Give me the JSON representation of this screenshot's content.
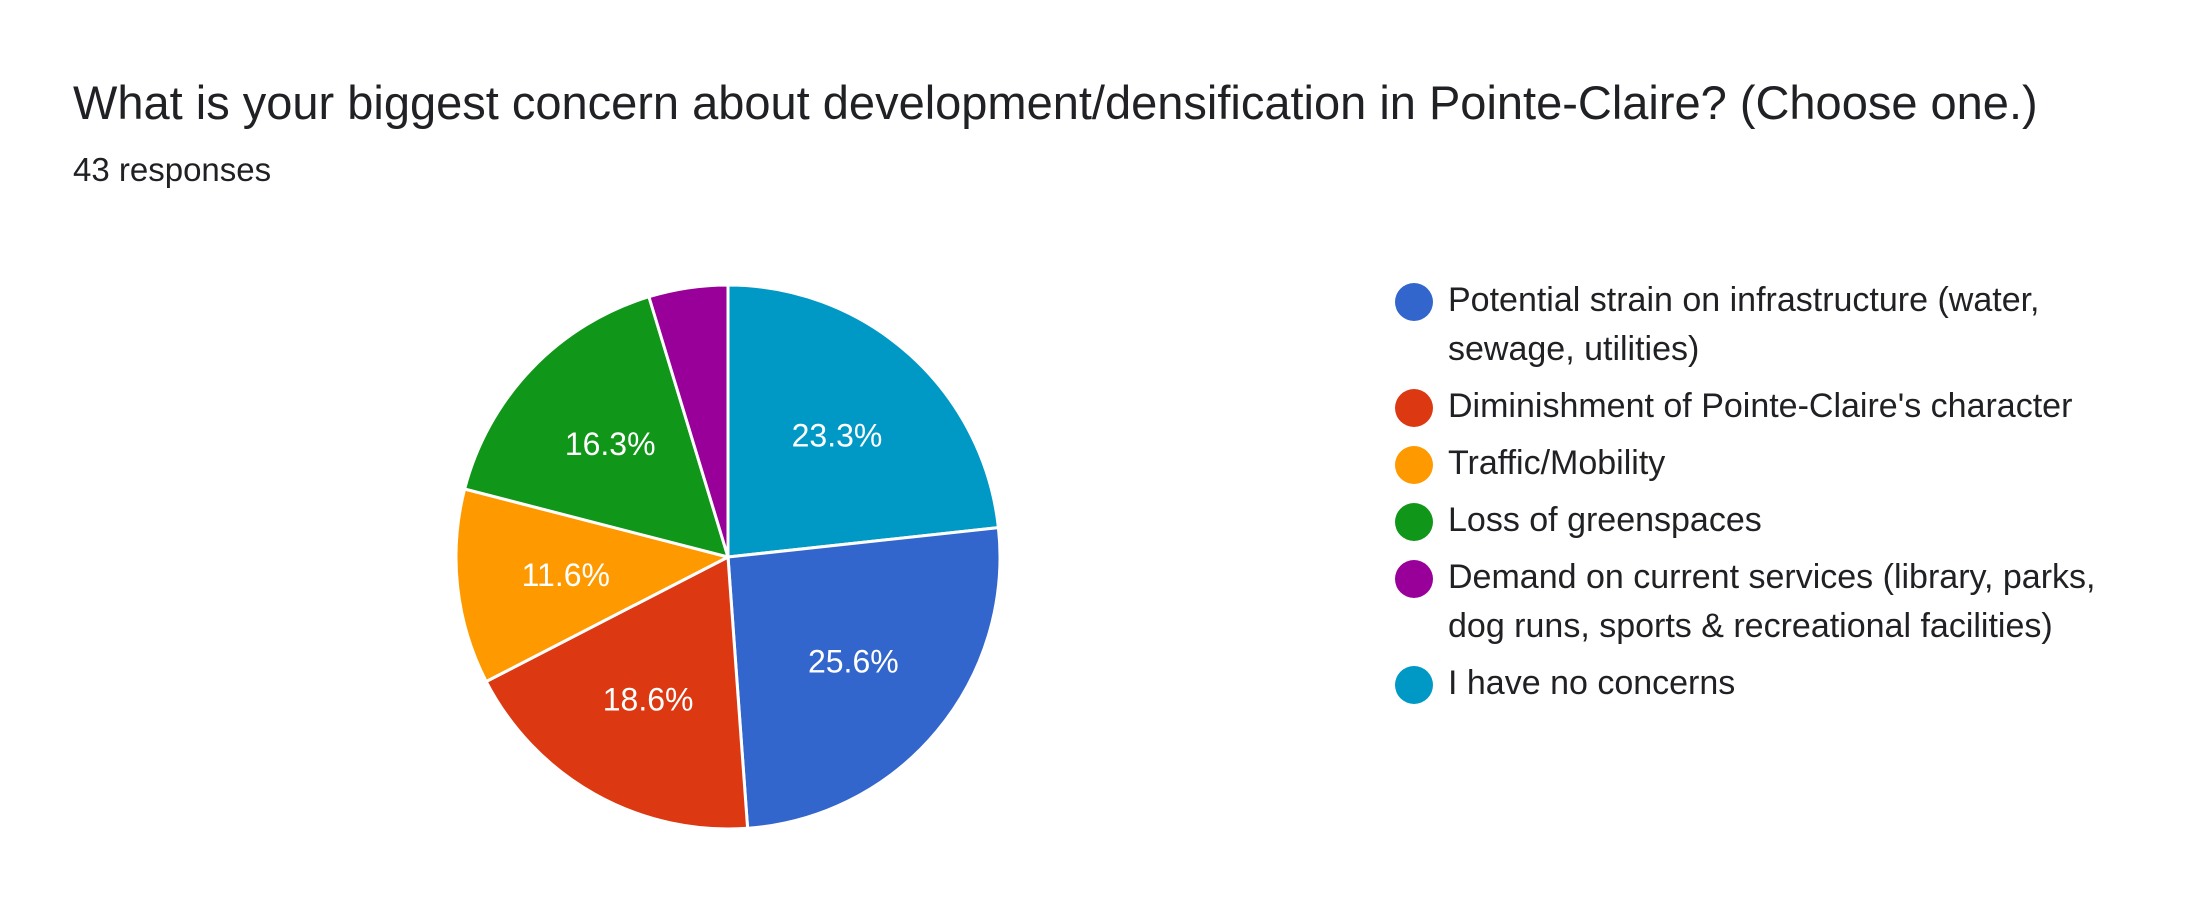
{
  "header": {
    "title": "What is your biggest concern about development/densification in Pointe-Claire? (Choose one.)",
    "responses": "43 responses"
  },
  "chart_data": {
    "type": "pie",
    "title": "What is your biggest concern about development/densification in Pointe-Claire? (Choose one.)",
    "total_responses": 43,
    "start": "top",
    "direction": "clockwise",
    "legend_position": "right",
    "slices": [
      {
        "label": "I have no concerns",
        "value": 23.3,
        "display": "23.3%",
        "color": "#0099C6"
      },
      {
        "label": "Potential strain on infrastructure (water, sewage, utilities)",
        "value": 25.6,
        "display": "25.6%",
        "color": "#3366CC"
      },
      {
        "label": "Diminishment of Pointe-Claire's character",
        "value": 18.6,
        "display": "18.6%",
        "color": "#DC3912"
      },
      {
        "label": "Traffic/Mobility",
        "value": 11.6,
        "display": "11.6%",
        "color": "#FF9900"
      },
      {
        "label": "Loss of greenspaces",
        "value": 16.3,
        "display": "16.3%",
        "color": "#109618"
      },
      {
        "label": "Demand on current services (library, parks, dog runs, sports & recreational facilities)",
        "value": 4.7,
        "display": "",
        "color": "#990099"
      }
    ],
    "legend": [
      {
        "label": "Potential strain on infrastructure (water, sewage, utilities)",
        "color": "#3366CC"
      },
      {
        "label": "Diminishment of Pointe-Claire's character",
        "color": "#DC3912"
      },
      {
        "label": "Traffic/Mobility",
        "color": "#FF9900"
      },
      {
        "label": "Loss of greenspaces",
        "color": "#109618"
      },
      {
        "label": "Demand on current services (library, parks, dog runs, sports & recreational facilities)",
        "color": "#990099"
      },
      {
        "label": "I have no concerns",
        "color": "#0099C6"
      }
    ]
  }
}
